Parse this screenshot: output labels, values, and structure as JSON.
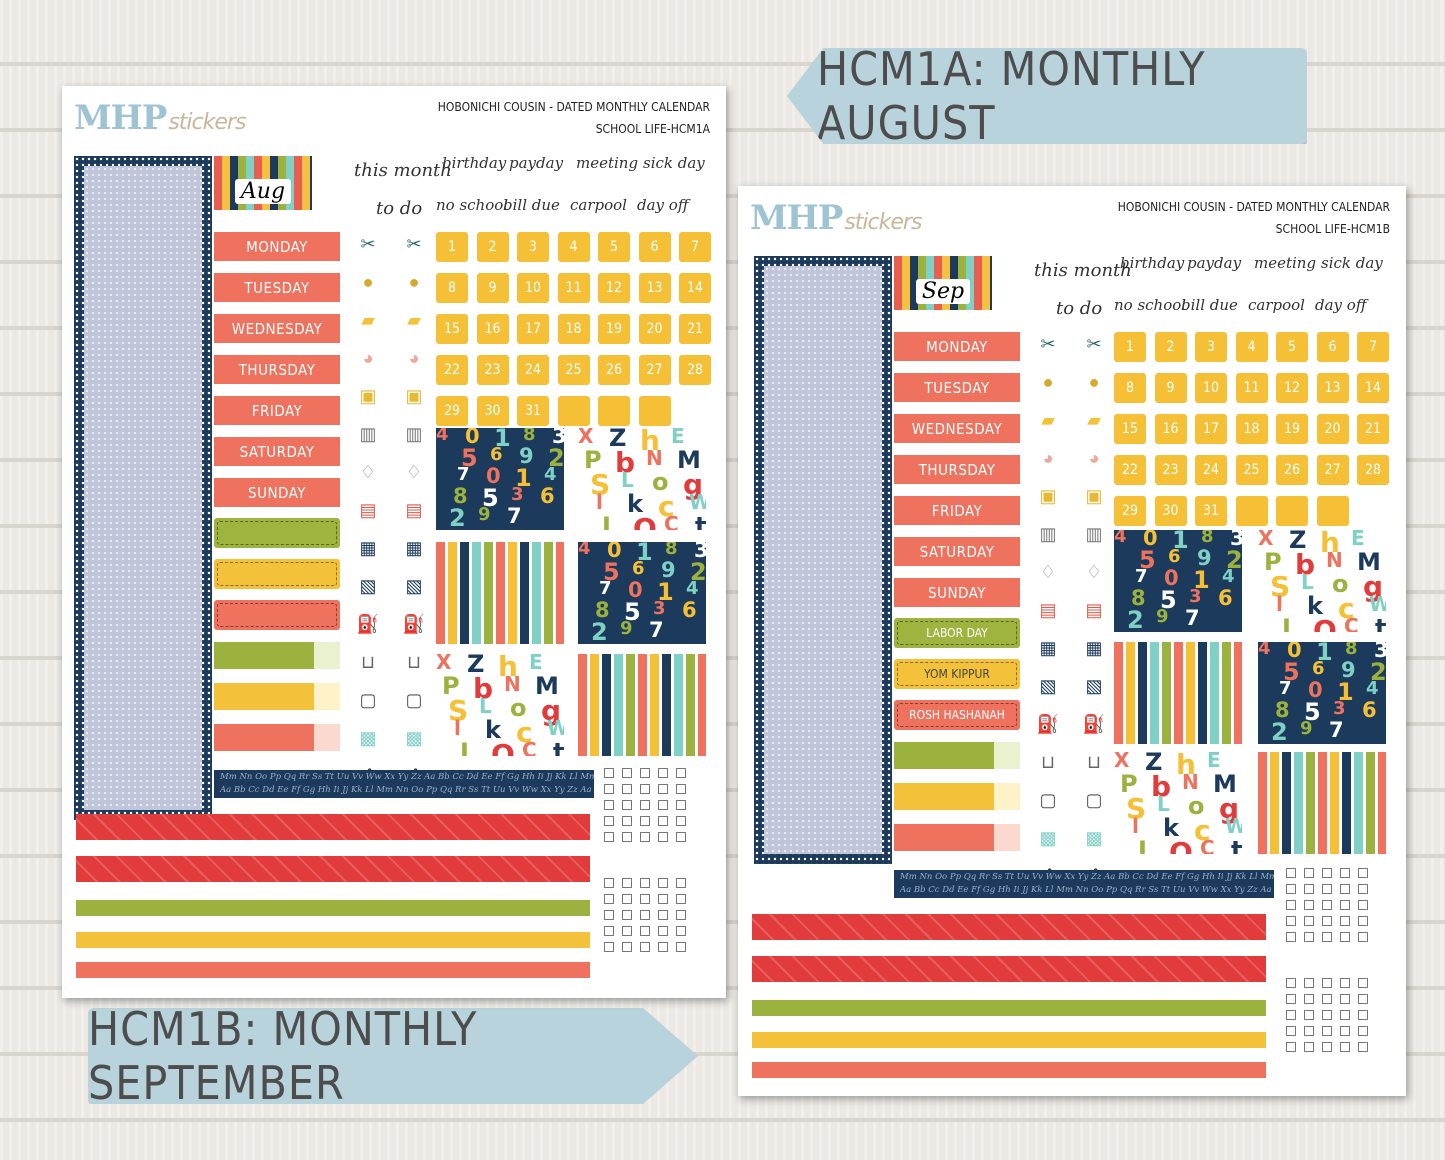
{
  "banners": {
    "top": "HCM1A: MONTHLY AUGUST",
    "bottom": "HCM1B: MONTHLY SEPTEMBER"
  },
  "sheet_a": {
    "logo_main": "MHP",
    "logo_script": "stickers",
    "title_line1": "HOBONICHI COUSIN - DATED MONTHLY CALENDAR",
    "title_line2": "SCHOOL LIFE-HCM1A",
    "month": "Aug",
    "days": [
      "MONDAY",
      "TUESDAY",
      "WEDNESDAY",
      "THURSDAY",
      "FRIDAY",
      "SATURDAY",
      "SUNDAY"
    ],
    "holidays": [
      "",
      "",
      ""
    ],
    "script_words": {
      "this_month": "this month",
      "to_do": "to do",
      "birthday": "birthday",
      "payday": "payday",
      "meeting": "meeting",
      "sick_day": "sick day",
      "no_school": "no school",
      "bill_due": "bill due",
      "carpool": "carpool",
      "day_off": "day off"
    },
    "dates": [
      "1",
      "2",
      "3",
      "4",
      "5",
      "6",
      "7",
      "8",
      "9",
      "10",
      "11",
      "12",
      "13",
      "14",
      "15",
      "16",
      "17",
      "18",
      "19",
      "20",
      "21",
      "22",
      "23",
      "24",
      "25",
      "26",
      "27",
      "28",
      "29",
      "30",
      "31",
      "",
      "",
      ""
    ],
    "alphabet_line1": "Mm Nn Oo Pp Qq Rr Ss Tt Uu Vv Ww Xx Yy Zz Aa Bb Cc Dd Ee Ff Gg Hh Ii Jj Kk Ll Mm Nn Oo Pp Qq Rr Ss Tt Uu",
    "alphabet_line2": "Aa Bb Cc Dd Ee Ff Gg Hh Ii Jj Kk Ll Mm Nn Oo Pp Qq Rr Ss Tt Uu Vv Ww Xx Yy Zz Aa Bb Cc Dd Ee Ff Gg Hh"
  },
  "sheet_b": {
    "logo_main": "MHP",
    "logo_script": "stickers",
    "title_line1": "HOBONICHI COUSIN - DATED MONTHLY CALENDAR",
    "title_line2": "SCHOOL LIFE-HCM1B",
    "month": "Sep",
    "days": [
      "MONDAY",
      "TUESDAY",
      "WEDNESDAY",
      "THURSDAY",
      "FRIDAY",
      "SATURDAY",
      "SUNDAY"
    ],
    "holidays": [
      "LABOR DAY",
      "YOM KIPPUR",
      "ROSH HASHANAH"
    ],
    "script_words": {
      "this_month": "this month",
      "to_do": "to do",
      "birthday": "birthday",
      "payday": "payday",
      "meeting": "meeting",
      "sick_day": "sick day",
      "no_school": "no school",
      "bill_due": "bill due",
      "carpool": "carpool",
      "day_off": "day off"
    },
    "dates": [
      "1",
      "2",
      "3",
      "4",
      "5",
      "6",
      "7",
      "8",
      "9",
      "10",
      "11",
      "12",
      "13",
      "14",
      "15",
      "16",
      "17",
      "18",
      "19",
      "20",
      "21",
      "22",
      "23",
      "24",
      "25",
      "26",
      "27",
      "28",
      "29",
      "30",
      "31",
      "",
      "",
      ""
    ],
    "alphabet_line1": "Mm Nn Oo Pp Qq Rr Ss Tt Uu Vv Ww Xx Yy Zz Aa Bb Cc Dd Ee Ff Gg Hh Ii Jj Kk Ll Mm Nn Oo Pp Qq Rr",
    "alphabet_line2": "Aa Bb Cc Dd Ee Ff Gg Hh Ii Jj Kk Ll Mm Nn Oo Pp Qq Rr Ss Tt Uu Vv Ww Xx Yy Zz Aa Bb Cc Dd"
  },
  "icons": [
    "scissors-comb-icon",
    "kettlebell-icon",
    "sneaker-icon",
    "piggy-bank-icon",
    "washing-machine-icon",
    "trash-can-icon",
    "tooth-icon",
    "luggage-icon",
    "pills-icon",
    "passport-icon",
    "fuel-pump-icon",
    "shopping-cart-icon",
    "scale-icon",
    "gift-icon",
    "stethoscope-icon"
  ],
  "colors": {
    "coral": "#ee725e",
    "yellow": "#f5c036",
    "navy": "#1b3a5c",
    "green": "#9cb23e",
    "red": "#e23b3b",
    "banner": "#b9d3dc"
  },
  "number_pattern": [
    "4",
    "0",
    "1",
    "8",
    "3",
    "5",
    "6",
    "9",
    "2",
    "7",
    "0",
    "1",
    "4",
    "8",
    "5",
    "3",
    "6",
    "2",
    "9",
    "7"
  ],
  "letter_pattern": [
    "X",
    "Z",
    "h",
    "E",
    "P",
    "b",
    "N",
    "M",
    "S",
    "L",
    "o",
    "g",
    "l",
    "k",
    "c",
    "W",
    "J",
    "Q",
    "C",
    "t"
  ]
}
